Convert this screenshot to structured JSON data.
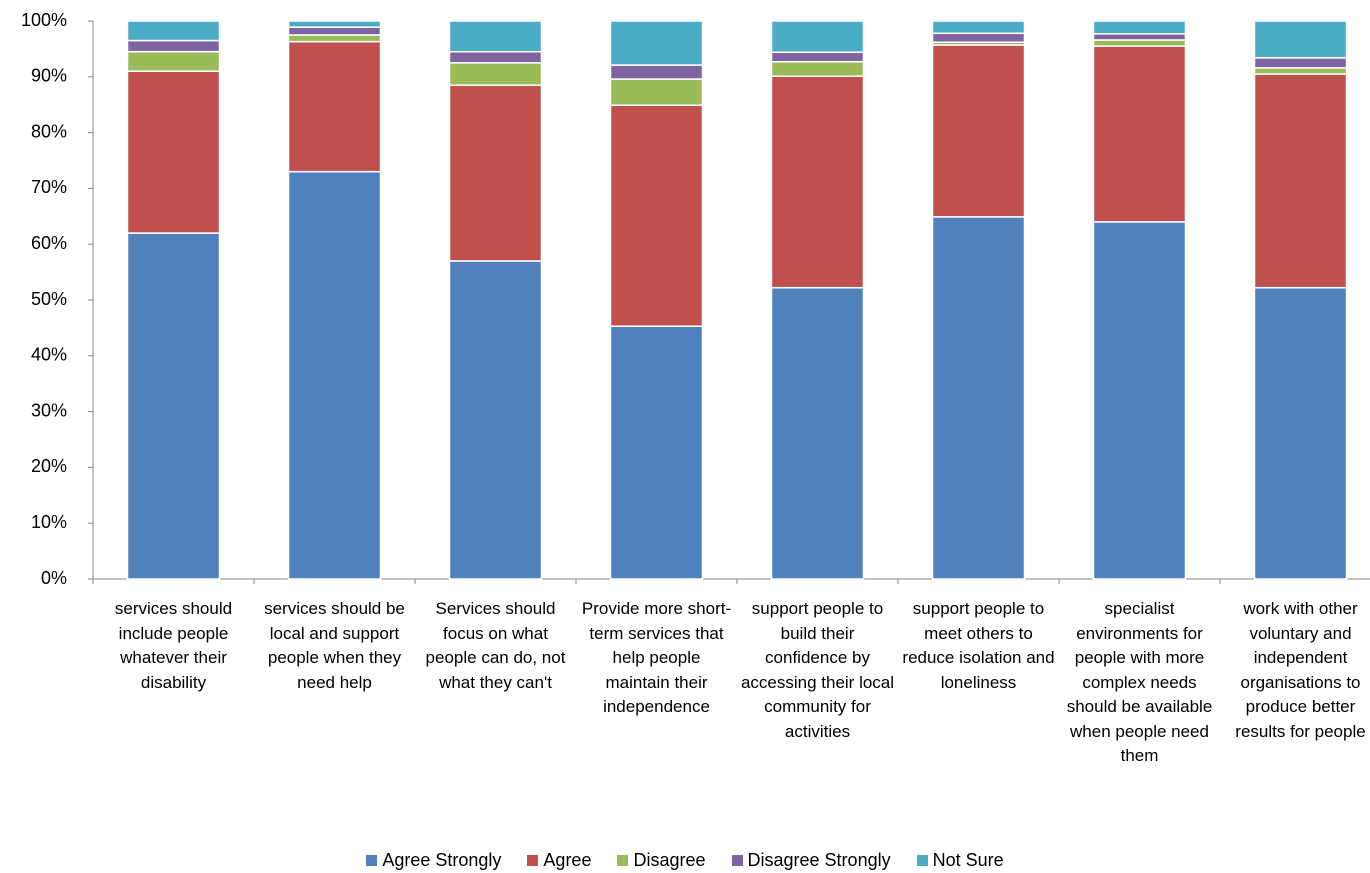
{
  "chart_data": {
    "type": "stacked_bar",
    "categories": [
      "services should include people whatever their disability",
      "services should be local and support people when they need help",
      "Services should focus on what people can do, not what they can't",
      "Provide more short-term services that help people maintain their independence",
      "support people to build their confidence by accessing their local community for activities",
      "support people to meet others to reduce isolation and loneliness",
      "specialist environments for people with more complex needs should be available when people need them",
      "work with other voluntary and independent organisations to produce better results for people"
    ],
    "series": [
      {
        "name": "Agree Strongly",
        "color": "#4f81bd",
        "values": [
          62,
          73,
          57,
          45.3,
          52.2,
          64.9,
          64,
          52.2
        ]
      },
      {
        "name": "Agree",
        "color": "#c0504d",
        "values": [
          29,
          23.3,
          31.5,
          39.6,
          37.9,
          30.8,
          31.5,
          38.3
        ]
      },
      {
        "name": "Disagree",
        "color": "#9bbb59",
        "values": [
          3.5,
          1.2,
          4,
          4.7,
          2.6,
          0.5,
          1.1,
          1.1
        ]
      },
      {
        "name": "Disagree Strongly",
        "color": "#8064a2",
        "values": [
          2,
          1.4,
          2,
          2.5,
          1.7,
          1.6,
          1.1,
          1.8
        ]
      },
      {
        "name": "Not Sure",
        "color": "#4bacc6",
        "values": [
          3.5,
          1.1,
          5.5,
          7.9,
          5.6,
          2.2,
          2.3,
          6.6
        ]
      }
    ],
    "ylim": [
      0,
      100
    ],
    "yticks": [
      {
        "value": 0,
        "label": "0%"
      },
      {
        "value": 10,
        "label": "10%"
      },
      {
        "value": 20,
        "label": "20%"
      },
      {
        "value": 30,
        "label": "30%"
      },
      {
        "value": 40,
        "label": "40%"
      },
      {
        "value": 50,
        "label": "50%"
      },
      {
        "value": 60,
        "label": "60%"
      },
      {
        "value": 70,
        "label": "70%"
      },
      {
        "value": 80,
        "label": "80%"
      },
      {
        "value": 90,
        "label": "90%"
      },
      {
        "value": 100,
        "label": "100%"
      }
    ],
    "grid": false,
    "legend": "bottom"
  }
}
